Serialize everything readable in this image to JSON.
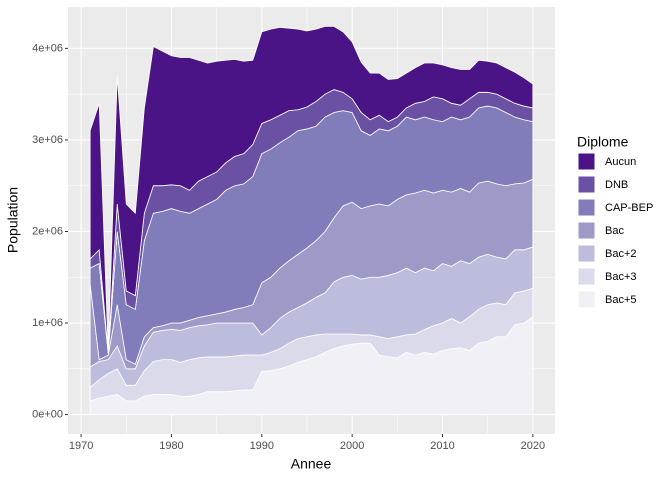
{
  "chart_data": {
    "type": "area",
    "stacked": true,
    "x_label": "Annee",
    "y_label": "Population",
    "legend_title": "Diplome",
    "legend_position": "right",
    "grid": true,
    "x": [
      1971,
      1972,
      1973,
      1974,
      1975,
      1976,
      1977,
      1978,
      1979,
      1980,
      1981,
      1982,
      1983,
      1984,
      1985,
      1986,
      1987,
      1988,
      1989,
      1990,
      1991,
      1992,
      1993,
      1994,
      1995,
      1996,
      1997,
      1998,
      1999,
      2000,
      2001,
      2002,
      2003,
      2004,
      2005,
      2006,
      2007,
      2008,
      2009,
      2010,
      2011,
      2012,
      2013,
      2014,
      2015,
      2016,
      2017,
      2018,
      2019,
      2020
    ],
    "series": [
      {
        "name": "Aucun",
        "color": "#4A1486",
        "values": [
          1400000,
          1600000,
          20000,
          1400000,
          950000,
          900000,
          1150000,
          1520000,
          1470000,
          1410000,
          1400000,
          1450000,
          1320000,
          1240000,
          1210000,
          1120000,
          1060000,
          1010000,
          920000,
          1000000,
          990000,
          960000,
          900000,
          880000,
          830000,
          790000,
          740000,
          690000,
          660000,
          620000,
          550000,
          510000,
          460000,
          460000,
          420000,
          380000,
          390000,
          420000,
          370000,
          370000,
          390000,
          390000,
          320000,
          350000,
          340000,
          340000,
          340000,
          340000,
          310000,
          260000
        ]
      },
      {
        "name": "DNB",
        "color": "#6A51A3",
        "values": [
          100000,
          150000,
          10000,
          300000,
          150000,
          150000,
          300000,
          300000,
          280000,
          260000,
          280000,
          250000,
          300000,
          300000,
          300000,
          300000,
          320000,
          330000,
          350000,
          330000,
          320000,
          300000,
          290000,
          230000,
          240000,
          270000,
          250000,
          250000,
          200000,
          150000,
          200000,
          170000,
          150000,
          100000,
          100000,
          100000,
          180000,
          170000,
          250000,
          250000,
          150000,
          160000,
          200000,
          170000,
          150000,
          150000,
          150000,
          150000,
          150000,
          150000
        ]
      },
      {
        "name": "CAP-BEP",
        "color": "#807DBA",
        "values": [
          180000,
          1050000,
          20000,
          800000,
          600000,
          600000,
          1050000,
          1250000,
          1250000,
          1250000,
          1220000,
          1170000,
          1190000,
          1220000,
          1250000,
          1330000,
          1350000,
          1350000,
          1400000,
          1410000,
          1400000,
          1370000,
          1350000,
          1350000,
          1300000,
          1250000,
          1250000,
          1150000,
          1040000,
          980000,
          850000,
          770000,
          820000,
          820000,
          800000,
          850000,
          800000,
          800000,
          800000,
          750000,
          820000,
          750000,
          820000,
          820000,
          820000,
          830000,
          800000,
          730000,
          690000,
          630000
        ]
      },
      {
        "name": "Bac",
        "color": "#9E9AC8",
        "values": [
          900000,
          20000,
          50000,
          450000,
          100000,
          50000,
          100000,
          50000,
          50000,
          70000,
          80000,
          80000,
          90000,
          100000,
          100000,
          120000,
          150000,
          170000,
          200000,
          570000,
          550000,
          550000,
          560000,
          580000,
          600000,
          620000,
          670000,
          700000,
          780000,
          800000,
          770000,
          780000,
          800000,
          760000,
          800000,
          800000,
          870000,
          850000,
          850000,
          800000,
          810000,
          790000,
          780000,
          810000,
          800000,
          800000,
          800000,
          720000,
          730000,
          740000
        ]
      },
      {
        "name": "Bac+2",
        "color": "#BCBDDC",
        "values": [
          220000,
          200000,
          150000,
          250000,
          180000,
          180000,
          270000,
          320000,
          320000,
          330000,
          350000,
          350000,
          350000,
          350000,
          370000,
          370000,
          360000,
          350000,
          350000,
          220000,
          270000,
          330000,
          340000,
          340000,
          370000,
          410000,
          450000,
          570000,
          620000,
          640000,
          610000,
          630000,
          650000,
          690000,
          700000,
          730000,
          670000,
          670000,
          600000,
          650000,
          570000,
          680000,
          580000,
          570000,
          550000,
          500000,
          500000,
          470000,
          450000,
          450000
        ]
      },
      {
        "name": "Bac+3",
        "color": "#DADAEB",
        "values": [
          150000,
          200000,
          250000,
          280000,
          170000,
          170000,
          280000,
          360000,
          380000,
          380000,
          370000,
          400000,
          400000,
          380000,
          380000,
          380000,
          380000,
          380000,
          380000,
          180000,
          200000,
          220000,
          250000,
          260000,
          250000,
          240000,
          200000,
          160000,
          130000,
          110000,
          90000,
          90000,
          200000,
          200000,
          230000,
          190000,
          230000,
          250000,
          310000,
          300000,
          330000,
          270000,
          370000,
          370000,
          400000,
          370000,
          350000,
          350000,
          350000,
          310000
        ]
      },
      {
        "name": "Bac+5",
        "color": "#F2F0F7",
        "values": [
          150000,
          180000,
          200000,
          220000,
          150000,
          150000,
          200000,
          220000,
          220000,
          220000,
          200000,
          200000,
          220000,
          250000,
          250000,
          250000,
          260000,
          270000,
          270000,
          470000,
          480000,
          500000,
          530000,
          570000,
          600000,
          630000,
          680000,
          720000,
          750000,
          770000,
          780000,
          780000,
          650000,
          630000,
          620000,
          680000,
          650000,
          680000,
          660000,
          700000,
          720000,
          730000,
          700000,
          780000,
          800000,
          850000,
          850000,
          980000,
          1000000,
          1070000
        ]
      }
    ],
    "xlim": [
      1968.55,
      2022.45
    ],
    "xticks": [
      1970,
      1980,
      1990,
      2000,
      2010,
      2020
    ],
    "ylim": [
      -212000,
      4452000
    ],
    "yticks": [
      {
        "value": 0,
        "label": "0e+00"
      },
      {
        "value": 1000000,
        "label": "1e+06"
      },
      {
        "value": 2000000,
        "label": "2e+06"
      },
      {
        "value": 3000000,
        "label": "3e+06"
      },
      {
        "value": 4000000,
        "label": "4e+06"
      }
    ]
  }
}
